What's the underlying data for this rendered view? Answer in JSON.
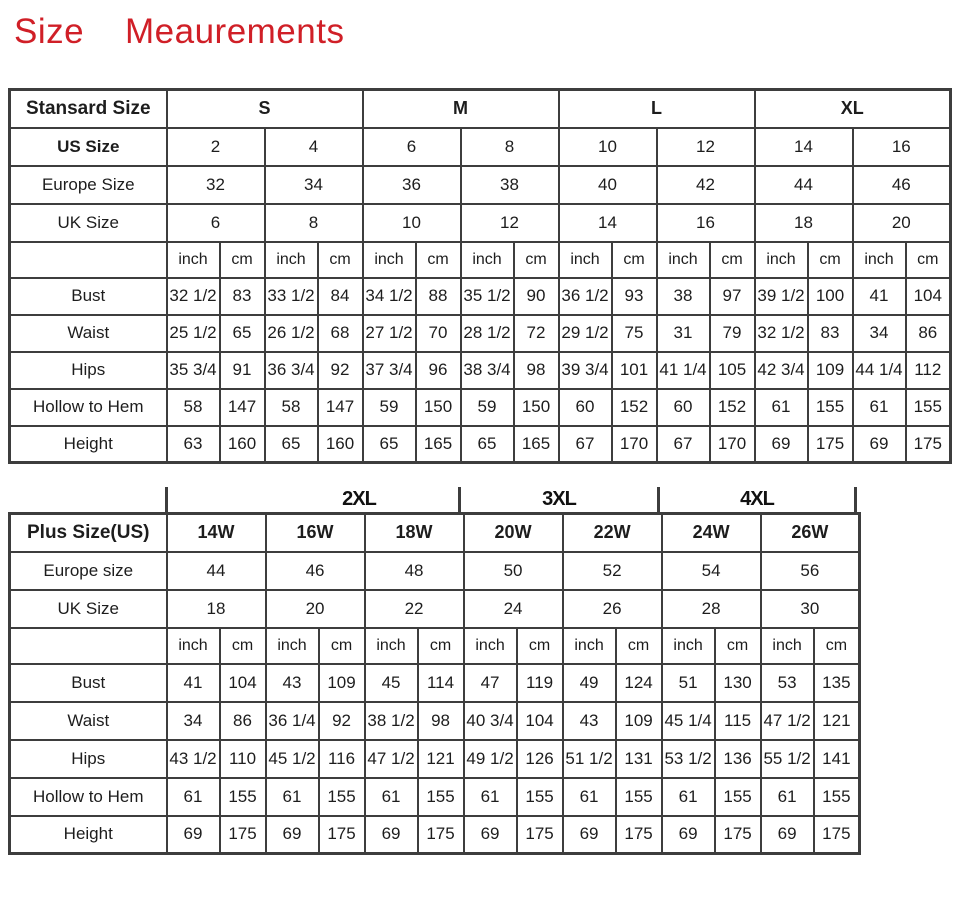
{
  "title": "Size    Meaurements",
  "units": [
    "inch",
    "cm"
  ],
  "standard_table": {
    "corner_label": "Stansard Size",
    "size_groups": [
      "S",
      "M",
      "L",
      "XL"
    ],
    "header_rows": [
      {
        "label": "US Size",
        "bold": true,
        "values": [
          "2",
          "4",
          "6",
          "8",
          "10",
          "12",
          "14",
          "16"
        ]
      },
      {
        "label": "Europe Size",
        "bold": false,
        "values": [
          "32",
          "34",
          "36",
          "38",
          "40",
          "42",
          "44",
          "46"
        ]
      },
      {
        "label": "UK Size",
        "bold": false,
        "values": [
          "6",
          "8",
          "10",
          "12",
          "14",
          "16",
          "18",
          "20"
        ]
      }
    ],
    "measurement_rows": [
      {
        "label": "Bust",
        "values": [
          "32 1/2",
          "83",
          "33 1/2",
          "84",
          "34 1/2",
          "88",
          "35 1/2",
          "90",
          "36 1/2",
          "93",
          "38",
          "97",
          "39 1/2",
          "100",
          "41",
          "104"
        ]
      },
      {
        "label": "Waist",
        "values": [
          "25 1/2",
          "65",
          "26 1/2",
          "68",
          "27 1/2",
          "70",
          "28 1/2",
          "72",
          "29 1/2",
          "75",
          "31",
          "79",
          "32 1/2",
          "83",
          "34",
          "86"
        ]
      },
      {
        "label": "Hips",
        "values": [
          "35 3/4",
          "91",
          "36 3/4",
          "92",
          "37 3/4",
          "96",
          "38 3/4",
          "98",
          "39 3/4",
          "101",
          "41 1/4",
          "105",
          "42 3/4",
          "109",
          "44 1/4",
          "112"
        ]
      },
      {
        "label": "Hollow to Hem",
        "values": [
          "58",
          "147",
          "58",
          "147",
          "59",
          "150",
          "59",
          "150",
          "60",
          "152",
          "60",
          "152",
          "61",
          "155",
          "61",
          "155"
        ]
      },
      {
        "label": "Height",
        "values": [
          "63",
          "160",
          "65",
          "160",
          "65",
          "165",
          "65",
          "165",
          "67",
          "170",
          "67",
          "170",
          "69",
          "175",
          "69",
          "175"
        ]
      }
    ]
  },
  "plus_band": [
    "2XL",
    "3XL",
    "4XL"
  ],
  "plus_table": {
    "corner_label": "Plus Size(US)",
    "sizes": [
      "14W",
      "16W",
      "18W",
      "20W",
      "22W",
      "24W",
      "26W"
    ],
    "header_rows": [
      {
        "label": "Europe size",
        "bold": false,
        "values": [
          "44",
          "46",
          "48",
          "50",
          "52",
          "54",
          "56"
        ]
      },
      {
        "label": "UK Size",
        "bold": false,
        "values": [
          "18",
          "20",
          "22",
          "24",
          "26",
          "28",
          "30"
        ]
      }
    ],
    "measurement_rows": [
      {
        "label": "Bust",
        "values": [
          "41",
          "104",
          "43",
          "109",
          "45",
          "114",
          "47",
          "119",
          "49",
          "124",
          "51",
          "130",
          "53",
          "135"
        ]
      },
      {
        "label": "Waist",
        "values": [
          "34",
          "86",
          "36 1/4",
          "92",
          "38 1/2",
          "98",
          "40 3/4",
          "104",
          "43",
          "109",
          "45 1/4",
          "115",
          "47 1/2",
          "121"
        ]
      },
      {
        "label": "Hips",
        "values": [
          "43 1/2",
          "110",
          "45 1/2",
          "116",
          "47 1/2",
          "121",
          "49 1/2",
          "126",
          "51 1/2",
          "131",
          "53 1/2",
          "136",
          "55 1/2",
          "141"
        ]
      },
      {
        "label": "Hollow to Hem",
        "values": [
          "61",
          "155",
          "61",
          "155",
          "61",
          "155",
          "61",
          "155",
          "61",
          "155",
          "61",
          "155",
          "61",
          "155"
        ]
      },
      {
        "label": "Height",
        "values": [
          "69",
          "175",
          "69",
          "175",
          "69",
          "175",
          "69",
          "175",
          "69",
          "175",
          "69",
          "175",
          "69",
          "175"
        ]
      }
    ]
  },
  "colors": {
    "title_red": "#d01f27",
    "border": "#3d3d3d",
    "text": "#1d1d1d"
  }
}
